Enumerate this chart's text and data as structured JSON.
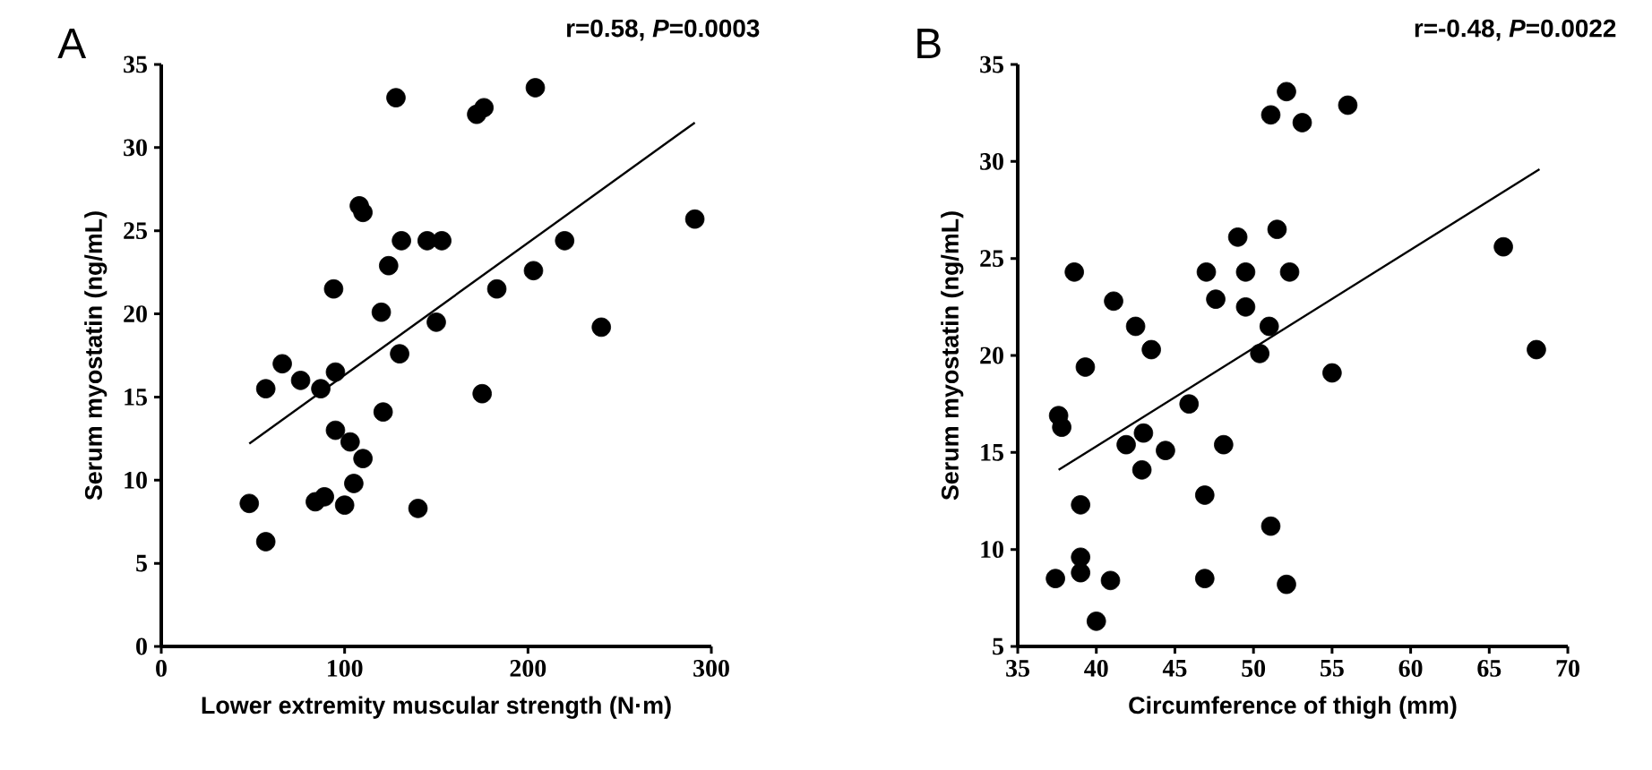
{
  "chart_data": [
    {
      "type": "scatter",
      "annotations": [
        "A",
        "r=0.58, *P*=0.0003"
      ],
      "xlabel": "Lower extremity muscular strength (N·m)",
      "ylabel": "Serum myostatin (ng/mL)",
      "xlim": [
        0,
        300
      ],
      "ylim": [
        0,
        35
      ],
      "xticks": [
        0,
        100,
        200,
        300
      ],
      "yticks": [
        0,
        5,
        10,
        15,
        20,
        25,
        30,
        35
      ],
      "grid": false,
      "series": [
        {
          "marker": "circle",
          "color": "#000000",
          "x": [
            48,
            57,
            57,
            66,
            76,
            87,
            84,
            89,
            95,
            94,
            95,
            103,
            100,
            105,
            110,
            108,
            110,
            121,
            120,
            124,
            130,
            128,
            131,
            140,
            145,
            153,
            150,
            175,
            172,
            176,
            183,
            204,
            203,
            220,
            240,
            291
          ],
          "values": [
            8.6,
            6.3,
            15.5,
            17,
            16,
            15.5,
            8.7,
            9,
            16.5,
            21.5,
            13,
            12.3,
            8.5,
            9.8,
            11.3,
            26.5,
            26.1,
            14.1,
            20.1,
            22.9,
            17.6,
            33,
            24.4,
            8.3,
            24.4,
            24.4,
            19.5,
            15.2,
            32,
            32.4,
            21.5,
            33.6,
            22.6,
            24.4,
            19.2,
            25.7
          ]
        },
        {
          "type": "line",
          "marker": "none",
          "color": "#000000",
          "x": [
            48,
            291
          ],
          "values": [
            12.2,
            31.5
          ]
        }
      ]
    },
    {
      "type": "scatter",
      "annotations": [
        "B",
        "r=-0.48, *P*=0.0022"
      ],
      "xlabel": "Circumference of thigh (mm)",
      "ylabel": "Serum myostatin (ng/mL)",
      "xlim": [
        35,
        70
      ],
      "ylim": [
        5,
        35
      ],
      "xticks": [
        35,
        40,
        45,
        50,
        55,
        60,
        65,
        70
      ],
      "yticks": [
        5,
        10,
        15,
        20,
        25,
        30,
        35
      ],
      "grid": false,
      "series": [
        {
          "marker": "circle",
          "color": "#000000",
          "x": [
            37.6,
            37.8,
            38.6,
            39.3,
            39.0,
            39.0,
            37.4,
            39.0,
            40.9,
            41.1,
            42.5,
            43.5,
            41.9,
            43.0,
            42.9,
            44.4,
            45.9,
            47.0,
            47.6,
            46.9,
            48.1,
            46.9,
            49.0,
            49.5,
            49.5,
            50.4,
            51.0,
            51.1,
            52.1,
            51.1,
            52.1,
            53.1,
            51.5,
            52.3,
            56.0,
            55.0,
            65.9,
            68.0,
            40.0
          ],
          "values": [
            16.9,
            16.3,
            24.3,
            19.4,
            12.3,
            9.6,
            8.5,
            8.8,
            8.4,
            22.8,
            21.5,
            20.3,
            15.4,
            16.0,
            14.1,
            15.1,
            17.5,
            24.3,
            22.9,
            12.8,
            15.4,
            8.5,
            26.1,
            24.3,
            22.5,
            20.1,
            21.5,
            11.2,
            8.2,
            32.4,
            33.6,
            32.0,
            26.5,
            24.3,
            32.9,
            19.1,
            25.6,
            20.3,
            6.3
          ]
        },
        {
          "type": "line",
          "marker": "none",
          "color": "#000000",
          "x": [
            37.6,
            68.2
          ],
          "values": [
            14.1,
            29.6
          ]
        }
      ]
    }
  ]
}
